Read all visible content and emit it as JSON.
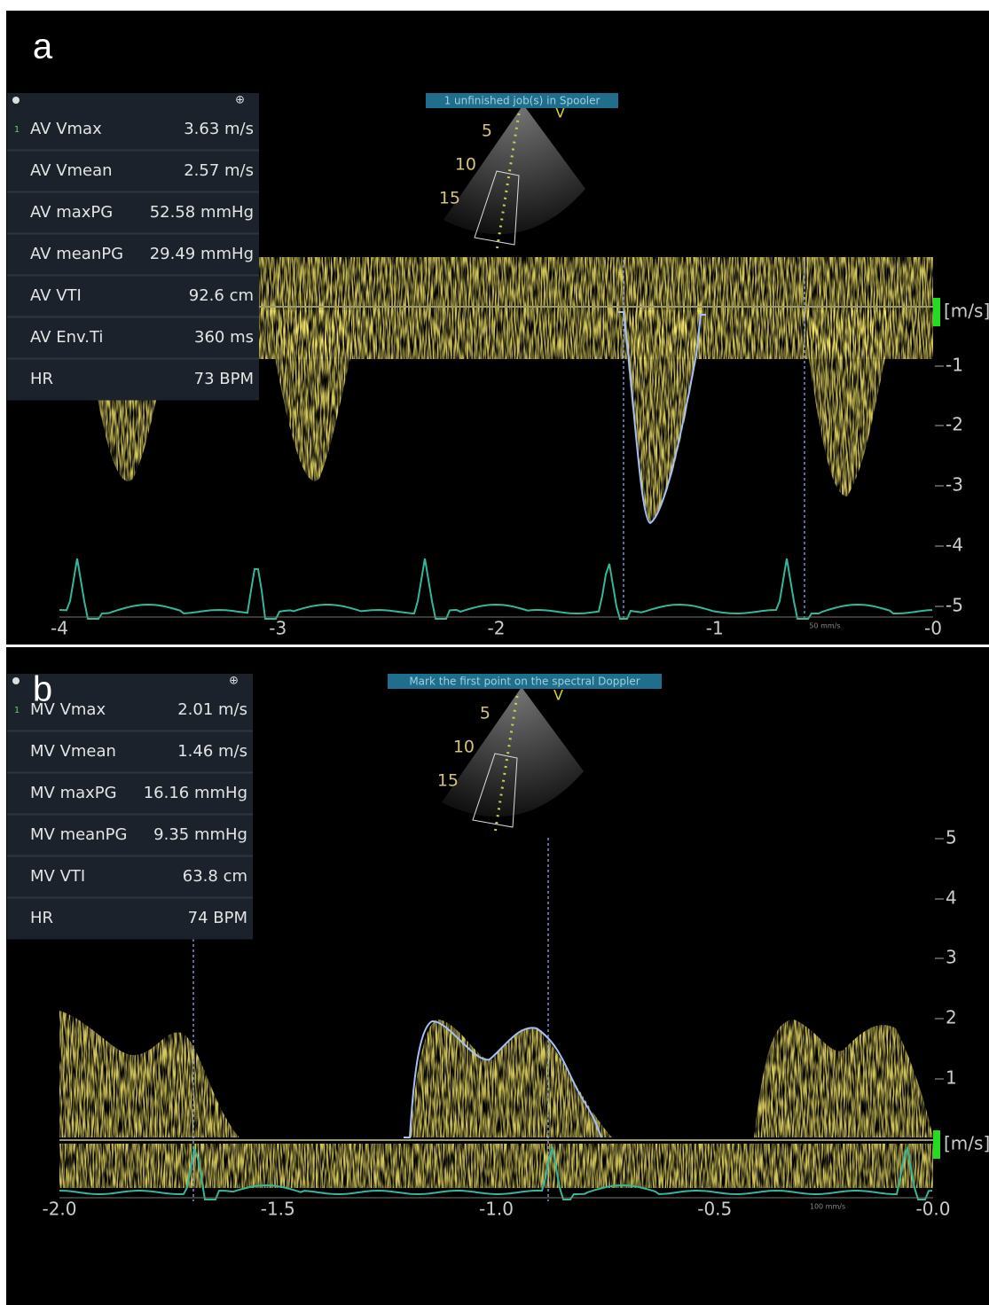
{
  "panels": [
    {
      "label": "a",
      "banner": "1 unfinished job(s) in Spooler",
      "probe_mark": "V",
      "depth_labels": [
        "5",
        "10",
        "15"
      ],
      "row_marker": "1",
      "measurements": [
        [
          "AV Vmax",
          "3.63 m/s"
        ],
        [
          "AV Vmean",
          "2.57 m/s"
        ],
        [
          "AV maxPG",
          "52.58 mmHg"
        ],
        [
          "AV meanPG",
          "29.49 mmHg"
        ],
        [
          "AV VTI",
          "92.6 cm"
        ],
        [
          "AV Env.Ti",
          "360 ms"
        ],
        [
          "HR",
          "73 BPM"
        ]
      ],
      "velocity_unit": "[m/s]",
      "velocity_ticks": [
        "-1",
        "-2",
        "-3",
        "-4",
        "-5"
      ],
      "time_ticks": [
        "-4",
        "-3",
        "-2",
        "-1",
        "-0"
      ],
      "sweep_speed": "50 mm/s"
    },
    {
      "label": "b",
      "banner": "Mark the first point on the spectral Doppler",
      "probe_mark": "V",
      "depth_labels": [
        "5",
        "10",
        "15"
      ],
      "row_marker": "1",
      "measurements": [
        [
          "MV Vmax",
          "2.01 m/s"
        ],
        [
          "MV Vmean",
          "1.46 m/s"
        ],
        [
          "MV maxPG",
          "16.16 mmHg"
        ],
        [
          "MV meanPG",
          "9.35 mmHg"
        ],
        [
          "MV VTI",
          "63.8 cm"
        ],
        [
          "HR",
          "74 BPM"
        ]
      ],
      "velocity_unit": "[m/s]",
      "velocity_ticks": [
        "5",
        "4",
        "3",
        "2",
        "1"
      ],
      "time_ticks": [
        "-2.0",
        "-1.5",
        "-1.0",
        "-0.5",
        "-0.0"
      ],
      "sweep_speed": "100 mm/s"
    }
  ]
}
